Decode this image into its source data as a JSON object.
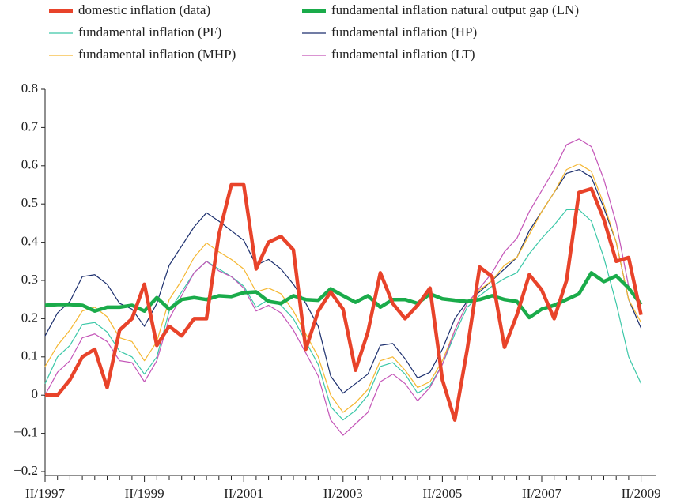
{
  "chart_data": {
    "type": "line",
    "categories": [
      "II/1997",
      null,
      null,
      null,
      null,
      null,
      null,
      null,
      "II/1999",
      null,
      null,
      null,
      null,
      null,
      null,
      null,
      "II/2001",
      null,
      null,
      null,
      null,
      null,
      null,
      null,
      "II/2003",
      null,
      null,
      null,
      null,
      null,
      null,
      null,
      "II/2005",
      null,
      null,
      null,
      null,
      null,
      null,
      null,
      "II/2007",
      null,
      null,
      null,
      null,
      null,
      null,
      null,
      "II/2009"
    ],
    "ylim": [
      -0.2,
      0.8
    ],
    "yticks": [
      {
        "value": -0.2,
        "label": "−0.2"
      },
      {
        "value": -0.1,
        "label": "−0.1"
      },
      0,
      0.1,
      0.2,
      0.3,
      0.4,
      0.5,
      0.6,
      0.7,
      0.8
    ],
    "legend": "top",
    "series": [
      {
        "name": "domestic inflation (data)",
        "color": "#e8432a",
        "line_width": 4.5,
        "values": [
          0.0,
          0.0,
          0.04,
          0.1,
          0.12,
          0.02,
          0.17,
          0.2,
          0.29,
          0.13,
          0.18,
          0.155,
          0.2,
          0.2,
          0.42,
          0.55,
          0.55,
          0.33,
          0.4,
          0.415,
          0.38,
          0.12,
          0.22,
          0.27,
          0.225,
          0.065,
          0.165,
          0.32,
          0.24,
          0.2,
          0.235,
          0.28,
          0.04,
          -0.065,
          0.12,
          0.335,
          0.31,
          0.125,
          0.21,
          0.315,
          0.275,
          0.2,
          0.3,
          0.53,
          0.54,
          0.46,
          0.35,
          0.36,
          0.21
        ]
      },
      {
        "name": "fundamental inflation natural output gap (LN)",
        "color": "#1aab4a",
        "line_width": 4.5,
        "values": [
          0.235,
          0.237,
          0.237,
          0.235,
          0.22,
          0.23,
          0.23,
          0.235,
          0.22,
          0.255,
          0.225,
          0.25,
          0.255,
          0.25,
          0.26,
          0.258,
          0.268,
          0.27,
          0.245,
          0.24,
          0.26,
          0.25,
          0.248,
          0.278,
          0.26,
          0.243,
          0.26,
          0.23,
          0.25,
          0.25,
          0.24,
          0.265,
          0.252,
          0.248,
          0.245,
          0.25,
          0.26,
          0.25,
          0.245,
          0.203,
          0.225,
          0.235,
          0.25,
          0.265,
          0.32,
          0.297,
          0.312,
          0.28,
          0.237
        ]
      },
      {
        "name": "fundamental inflation (PF)",
        "color": "#3cc8a8",
        "line_width": 1.2,
        "values": [
          0.03,
          0.1,
          0.13,
          0.185,
          0.19,
          0.165,
          0.115,
          0.1,
          0.055,
          0.1,
          0.22,
          0.27,
          0.32,
          0.35,
          0.33,
          0.31,
          0.285,
          0.23,
          0.25,
          0.235,
          0.2,
          0.14,
          0.08,
          -0.03,
          -0.065,
          -0.04,
          0.0,
          0.075,
          0.085,
          0.055,
          0.005,
          0.025,
          0.08,
          0.16,
          0.23,
          0.26,
          0.285,
          0.305,
          0.32,
          0.37,
          0.41,
          0.445,
          0.485,
          0.485,
          0.455,
          0.36,
          0.24,
          0.1,
          0.03
        ]
      },
      {
        "name": "fundamental inflation (HP)",
        "color": "#1c2f6e",
        "line_width": 1.2,
        "values": [
          0.155,
          0.215,
          0.245,
          0.31,
          0.315,
          0.29,
          0.24,
          0.225,
          0.18,
          0.24,
          0.34,
          0.39,
          0.44,
          0.477,
          0.455,
          0.43,
          0.405,
          0.34,
          0.355,
          0.33,
          0.29,
          0.24,
          0.18,
          0.05,
          0.005,
          0.03,
          0.055,
          0.13,
          0.135,
          0.095,
          0.045,
          0.06,
          0.12,
          0.2,
          0.245,
          0.27,
          0.3,
          0.33,
          0.36,
          0.43,
          0.48,
          0.53,
          0.58,
          0.59,
          0.57,
          0.49,
          0.4,
          0.25,
          0.175
        ]
      },
      {
        "name": "fundamental inflation (MHP)",
        "color": "#f5b731",
        "line_width": 1.2,
        "values": [
          0.075,
          0.13,
          0.17,
          0.22,
          0.23,
          0.205,
          0.15,
          0.14,
          0.09,
          0.14,
          0.25,
          0.3,
          0.36,
          0.398,
          0.375,
          0.355,
          0.33,
          0.27,
          0.28,
          0.265,
          0.22,
          0.16,
          0.1,
          0.0,
          -0.045,
          -0.02,
          0.015,
          0.09,
          0.1,
          0.065,
          0.02,
          0.035,
          0.09,
          0.17,
          0.24,
          0.275,
          0.3,
          0.34,
          0.36,
          0.42,
          0.48,
          0.53,
          0.59,
          0.605,
          0.585,
          0.5,
          0.4,
          0.25,
          0.19
        ]
      },
      {
        "name": "fundamental inflation (LT)",
        "color": "#c455b8",
        "line_width": 1.2,
        "values": [
          0.0,
          0.06,
          0.09,
          0.15,
          0.16,
          0.14,
          0.09,
          0.085,
          0.035,
          0.09,
          0.2,
          0.26,
          0.32,
          0.35,
          0.325,
          0.31,
          0.28,
          0.22,
          0.235,
          0.215,
          0.17,
          0.11,
          0.05,
          -0.065,
          -0.105,
          -0.075,
          -0.045,
          0.035,
          0.055,
          0.03,
          -0.015,
          0.02,
          0.08,
          0.17,
          0.24,
          0.28,
          0.32,
          0.375,
          0.41,
          0.48,
          0.535,
          0.59,
          0.655,
          0.67,
          0.65,
          0.565,
          0.45,
          0.285,
          0.24
        ]
      }
    ]
  }
}
